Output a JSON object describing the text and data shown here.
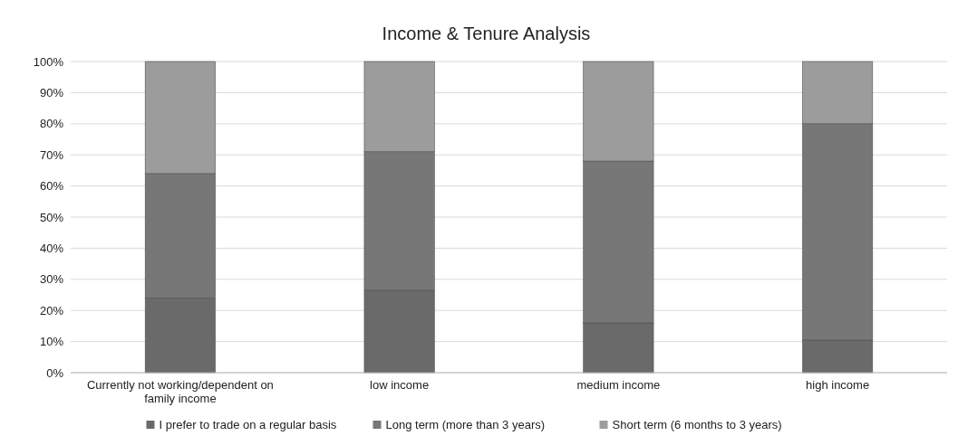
{
  "chart_data": {
    "type": "bar",
    "title": "Income & Tenure Analysis",
    "stacked": true,
    "categories": [
      "Currently not working/dependent on family income",
      "low income",
      "medium income",
      "high income"
    ],
    "series": [
      {
        "name": "I prefer to trade on a regular basis",
        "color": "#6a6a6a",
        "values": [
          24,
          26.5,
          16,
          10.5
        ]
      },
      {
        "name": "Long term (more than 3 years)",
        "color": "#777777",
        "values": [
          40,
          44.5,
          52,
          69.5
        ]
      },
      {
        "name": "Short term (6 months to 3 years)",
        "color": "#9c9c9c",
        "values": [
          36,
          29,
          32,
          20
        ]
      }
    ],
    "ylim": [
      0,
      100
    ],
    "yticks": [
      {
        "value": 0,
        "label": "0%"
      },
      {
        "value": 10,
        "label": "10%"
      },
      {
        "value": 20,
        "label": "20%"
      },
      {
        "value": 30,
        "label": "30%"
      },
      {
        "value": 40,
        "label": "40%"
      },
      {
        "value": 50,
        "label": "50%"
      },
      {
        "value": 60,
        "label": "60%"
      },
      {
        "value": 70,
        "label": "70%"
      },
      {
        "value": 80,
        "label": "80%"
      },
      {
        "value": 90,
        "label": "90%"
      },
      {
        "value": 100,
        "label": "100%"
      }
    ],
    "grid": "y",
    "legend": "bottom"
  }
}
